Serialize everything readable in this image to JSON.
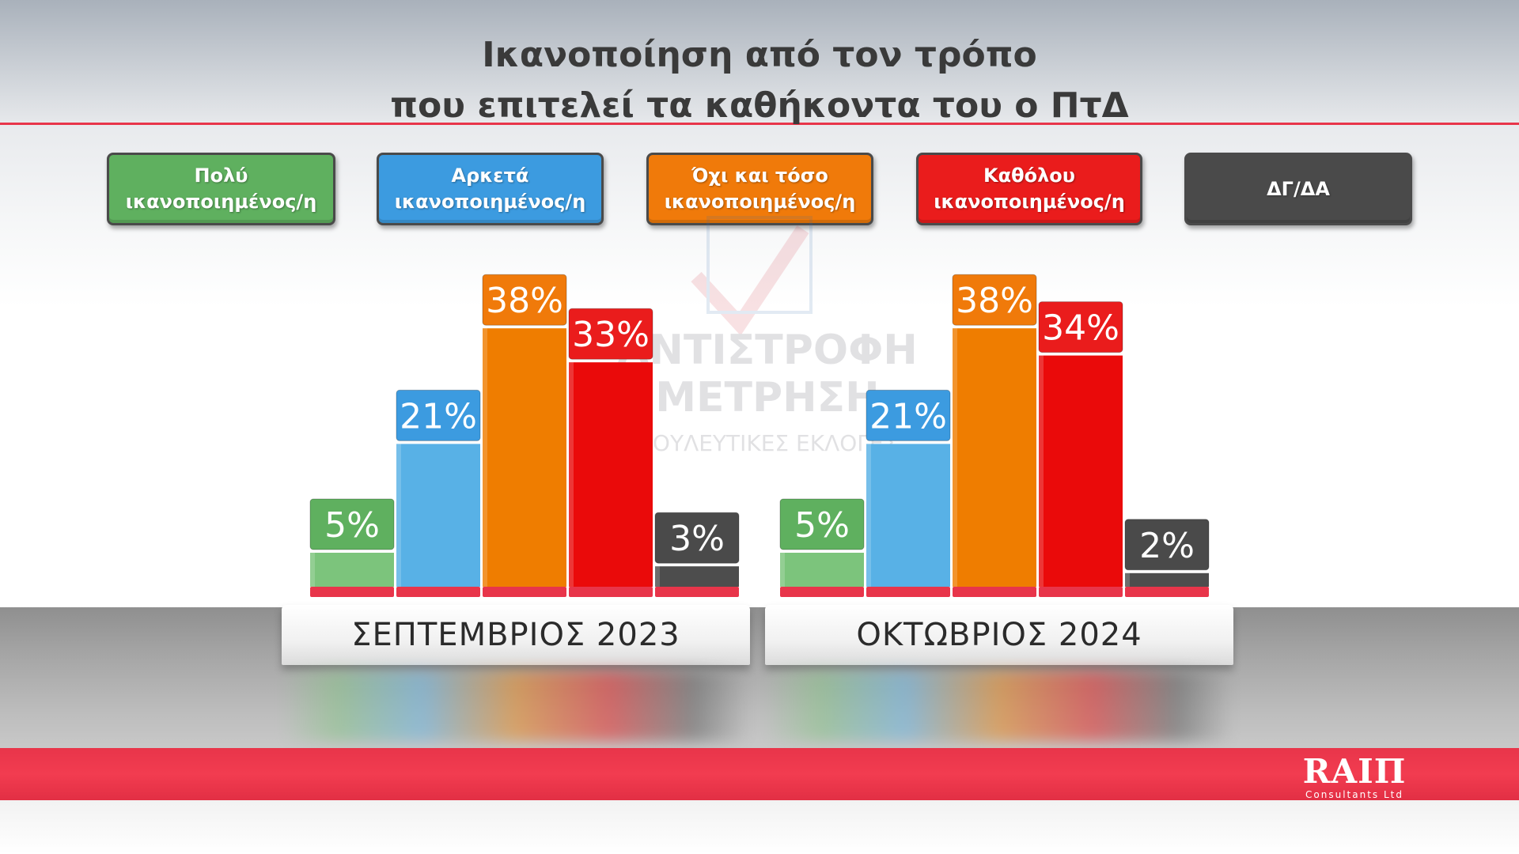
{
  "title_lines": [
    "Ικανοποίηση από τον τρόπο",
    "που επιτελεί τα καθήκοντα του ο ΠτΔ"
  ],
  "colors": {
    "very": "#5fb05f",
    "quite": "#3c9be0",
    "not_much": "#f07a0a",
    "not_at_all": "#ea1c1c",
    "dk": "#4a4a4a",
    "accent_red": "#e8354a"
  },
  "legend": [
    {
      "key": "very",
      "label": "Πολύ\nικανοποιημένος/η",
      "color": "#5fb05f"
    },
    {
      "key": "quite",
      "label": "Αρκετά\nικανοποιημένος/η",
      "color": "#3c9be0"
    },
    {
      "key": "not_much",
      "label": "Όχι και τόσο\nικανοποιημένος/η",
      "color": "#f07a0a"
    },
    {
      "key": "not_at_all",
      "label": "Καθόλου\nικανοποιημένος/η",
      "color": "#ea1c1c"
    },
    {
      "key": "dk",
      "label": "ΔΓ/ΔΑ",
      "color": "#4a4a4a"
    }
  ],
  "watermark": {
    "lines": [
      "ΑΝΤΙΣΤΡΟΦΗ",
      "ΜΕΤΡΗΣΗ",
      "ΒΟΥΛΕΥΤΙΚΕΣ ΕΚΛΟΓΕΣ"
    ]
  },
  "chart_data": {
    "type": "bar",
    "title": "Ικανοποίηση από τον τρόπο που επιτελεί τα καθήκοντα του ο ΠτΔ",
    "categories": [
      "ΣΕΠΤΕΜΒΡΙΟΣ 2023",
      "ΟΚΤΩΒΡΙΟΣ 2024"
    ],
    "series": [
      {
        "name": "Πολύ ικανοποιημένος/η",
        "values": [
          5,
          5
        ],
        "labels": [
          "5%",
          "5%"
        ],
        "color": "#7cc47c"
      },
      {
        "name": "Αρκετά ικανοποιημένος/η",
        "values": [
          21,
          21
        ],
        "labels": [
          "21%",
          "21%"
        ],
        "color": "#58b1e6"
      },
      {
        "name": "Όχι και τόσο ικανοποιημένος/η",
        "values": [
          38,
          38
        ],
        "labels": [
          "38%",
          "38%"
        ],
        "color": "#ef7d00"
      },
      {
        "name": "Καθόλου ικανοποιημένος/η",
        "values": [
          33,
          34
        ],
        "labels": [
          "33%",
          "34%"
        ],
        "color": "#ea0a0a"
      },
      {
        "name": "ΔΓ/ΔΑ",
        "values": [
          3,
          2
        ],
        "labels": [
          "3%",
          "2%"
        ],
        "color": "#4d4d4d"
      }
    ],
    "label_colors": [
      "#5fb05f",
      "#3c9be0",
      "#f07a0a",
      "#ea1c1c",
      "#4a4a4a"
    ],
    "unit": "%",
    "ylim": [
      0,
      40
    ],
    "legend_position": "top",
    "grid": false
  },
  "logo": {
    "brand": "RAIΠ",
    "sub": "Consultants Ltd"
  }
}
